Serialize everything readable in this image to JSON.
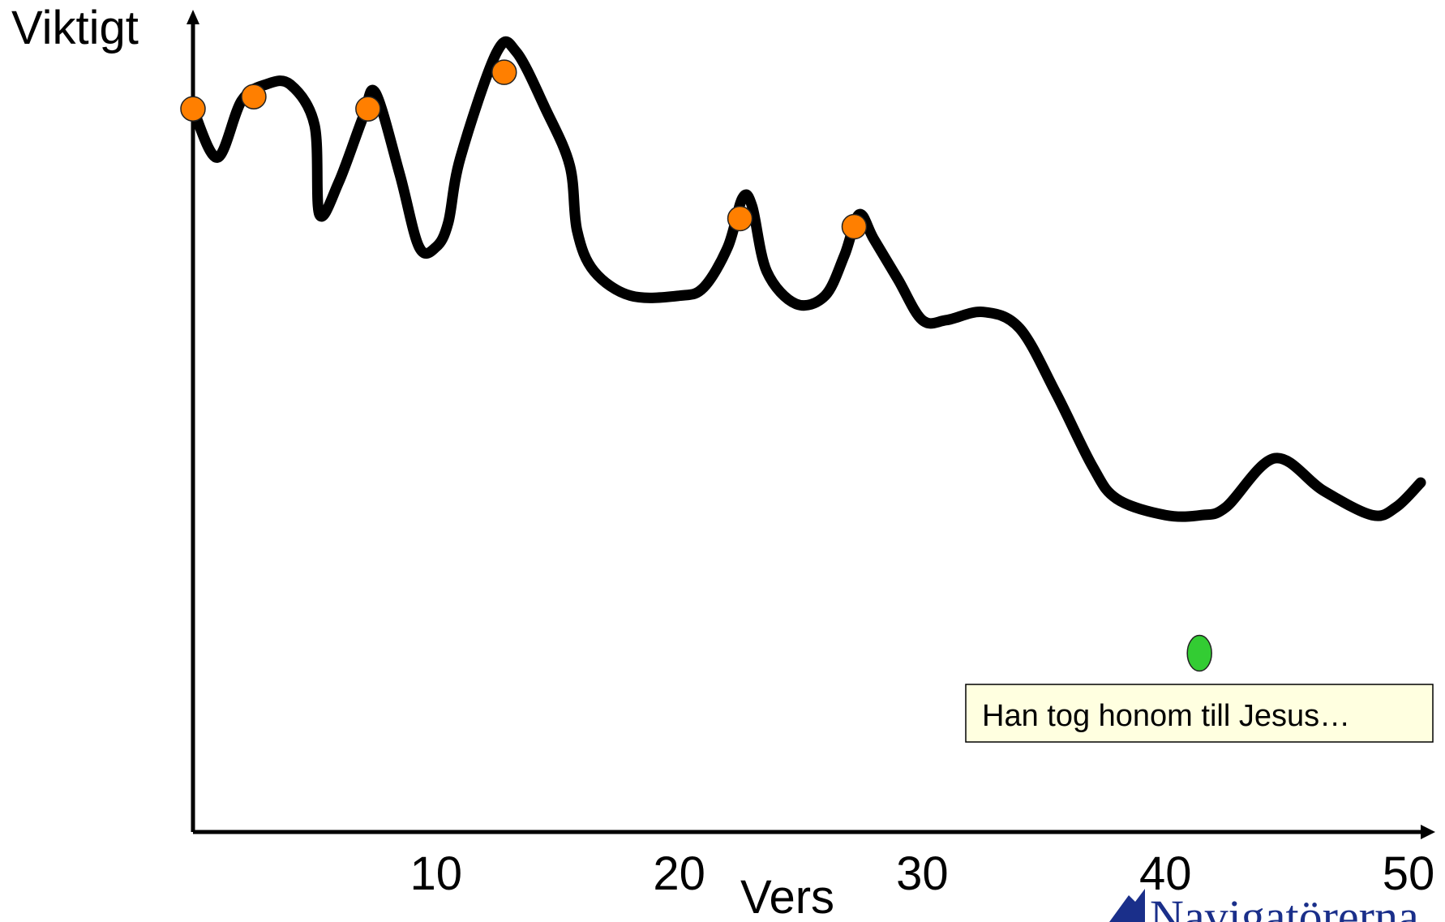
{
  "chart_data": {
    "type": "line",
    "ylabel": "Viktigt",
    "xlabel": "Vers",
    "xlim": [
      0,
      51
    ],
    "ylim": [
      0,
      100
    ],
    "grid": false,
    "x_ticks": [
      10,
      20,
      30,
      40,
      50
    ],
    "series": [
      {
        "color": "#000000",
        "points": [
          [
            0,
            89
          ],
          [
            1,
            83
          ],
          [
            2,
            90
          ],
          [
            3,
            92
          ],
          [
            4,
            92
          ],
          [
            5,
            87
          ],
          [
            5.2,
            76
          ],
          [
            6,
            80
          ],
          [
            7,
            88
          ],
          [
            7.5,
            91
          ],
          [
            8.5,
            81
          ],
          [
            9.3,
            72
          ],
          [
            10,
            72
          ],
          [
            10.5,
            75
          ],
          [
            11,
            83
          ],
          [
            12.5,
            96
          ],
          [
            13.3,
            96
          ],
          [
            14.5,
            89
          ],
          [
            15.5,
            82
          ],
          [
            15.8,
            74
          ],
          [
            16.5,
            69
          ],
          [
            18,
            66
          ],
          [
            20,
            66
          ],
          [
            21,
            67
          ],
          [
            22,
            72
          ],
          [
            22.6,
            78
          ],
          [
            23,
            77
          ],
          [
            23.6,
            69
          ],
          [
            24.8,
            65
          ],
          [
            26,
            66
          ],
          [
            26.8,
            71
          ],
          [
            27.4,
            76
          ],
          [
            28,
            73
          ],
          [
            29,
            68
          ],
          [
            30,
            63
          ],
          [
            31,
            63
          ],
          [
            32.5,
            64
          ],
          [
            34,
            62
          ],
          [
            35.5,
            54
          ],
          [
            37,
            45
          ],
          [
            38,
            41
          ],
          [
            40,
            39
          ],
          [
            41.5,
            39
          ],
          [
            42.5,
            40
          ],
          [
            44.5,
            46
          ],
          [
            46.5,
            42
          ],
          [
            48.5,
            39
          ],
          [
            49.5,
            40
          ],
          [
            50.5,
            43
          ]
        ]
      }
    ],
    "markers": [
      {
        "x": 0,
        "y": 89,
        "color": "#ff7f00"
      },
      {
        "x": 2.5,
        "y": 90.5,
        "color": "#ff7f00"
      },
      {
        "x": 7.2,
        "y": 89,
        "color": "#ff7f00"
      },
      {
        "x": 12.8,
        "y": 93.5,
        "color": "#ff7f00"
      },
      {
        "x": 22.5,
        "y": 75.5,
        "color": "#ff7f00"
      },
      {
        "x": 27.2,
        "y": 74.5,
        "color": "#ff7f00"
      },
      {
        "x": 41.4,
        "y": 22,
        "color": "#33cc33"
      }
    ],
    "annotations": [
      {
        "text": "Han tog honom till Jesus…",
        "x": 41,
        "y": 16
      }
    ]
  },
  "logo": {
    "text": "Navigatörerna",
    "color": "#1a2f8a"
  }
}
